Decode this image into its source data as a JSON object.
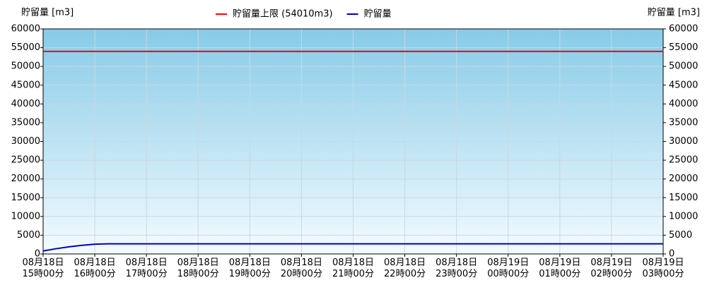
{
  "chart_data": {
    "type": "line",
    "y_label": "貯留量 [m3]",
    "y2_label": "貯留量 [m3]",
    "xlim": [
      0,
      12
    ],
    "xticks": [
      {
        "value": 0,
        "label": "08月18日\n15時00分"
      },
      {
        "value": 1,
        "label": "08月18日\n16時00分"
      },
      {
        "value": 2,
        "label": "08月18日\n17時00分"
      },
      {
        "value": 3,
        "label": "08月18日\n18時00分"
      },
      {
        "value": 4,
        "label": "08月18日\n19時00分"
      },
      {
        "value": 5,
        "label": "08月18日\n20時00分"
      },
      {
        "value": 6,
        "label": "08月18日\n21時00分"
      },
      {
        "value": 7,
        "label": "08月18日\n22時00分"
      },
      {
        "value": 8,
        "label": "08月18日\n23時00分"
      },
      {
        "value": 9,
        "label": "08月19日\n00時00分"
      },
      {
        "value": 10,
        "label": "08月19日\n01時00分"
      },
      {
        "value": 11,
        "label": "08月19日\n02時00分"
      },
      {
        "value": 12,
        "label": "08月19日\n03時00分"
      }
    ],
    "ylim": [
      0,
      60000
    ],
    "yticks": [
      0,
      5000,
      10000,
      15000,
      20000,
      25000,
      30000,
      35000,
      40000,
      45000,
      50000,
      55000,
      60000
    ],
    "y2lim": [
      0,
      60000
    ],
    "y2ticks": [
      0,
      5000,
      10000,
      15000,
      20000,
      25000,
      30000,
      35000,
      40000,
      45000,
      50000,
      55000,
      60000
    ],
    "grid": true,
    "legend": "top",
    "series": [
      {
        "name": "貯留量上限 (54010m3)",
        "color": "#ff0000",
        "x": [
          0,
          12
        ],
        "values": [
          54010,
          54010
        ]
      },
      {
        "name": "貯留量",
        "color": "#0000cc",
        "x": [
          0,
          0.25,
          0.5,
          0.75,
          1,
          1.25,
          12
        ],
        "values": [
          800,
          1400,
          1900,
          2300,
          2600,
          2700,
          2700
        ]
      }
    ]
  }
}
